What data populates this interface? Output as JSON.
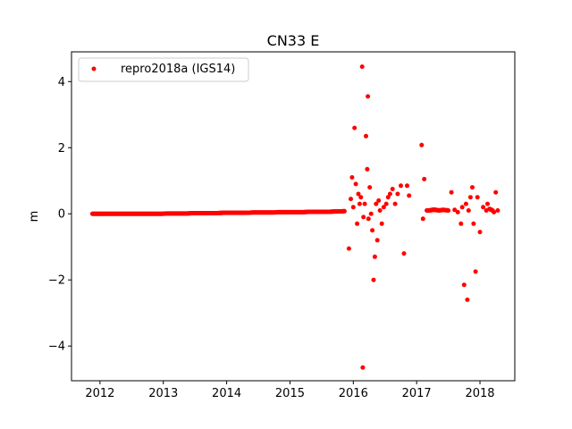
{
  "chart_data": {
    "type": "scatter",
    "title": "CN33 E",
    "xlabel": "",
    "ylabel": "m",
    "xlim": [
      2011.55,
      2018.55
    ],
    "ylim": [
      -5.05,
      4.9
    ],
    "xticks": [
      2012,
      2013,
      2014,
      2015,
      2016,
      2017,
      2018
    ],
    "xtick_labels": [
      "2012",
      "2013",
      "2014",
      "2015",
      "2016",
      "2017",
      "2018"
    ],
    "yticks": [
      -4,
      -2,
      0,
      2,
      4
    ],
    "ytick_labels": [
      "−4",
      "−2",
      "0",
      "2",
      "4"
    ],
    "grid": false,
    "legend_position": "top-left",
    "series": [
      {
        "name": "repro2018a (IGS14)",
        "color": "#ff0000",
        "marker": "dot",
        "x": [
          2011.88,
          2011.95,
          2012.02,
          2012.1,
          2012.18,
          2012.26,
          2012.34,
          2012.42,
          2012.5,
          2012.58,
          2012.66,
          2012.74,
          2012.82,
          2012.9,
          2012.98,
          2013.06,
          2013.14,
          2013.22,
          2013.3,
          2013.38,
          2013.46,
          2013.54,
          2013.62,
          2013.7,
          2013.78,
          2013.86,
          2013.94,
          2014.02,
          2014.1,
          2014.18,
          2014.26,
          2014.34,
          2014.42,
          2014.5,
          2014.58,
          2014.66,
          2014.74,
          2014.82,
          2014.9,
          2014.98,
          2015.06,
          2015.14,
          2015.22,
          2015.3,
          2015.38,
          2015.46,
          2015.54,
          2015.62,
          2015.7,
          2015.78,
          2015.86,
          2015.93,
          2015.96,
          2015.98,
          2016.0,
          2016.02,
          2016.04,
          2016.06,
          2016.08,
          2016.1,
          2016.12,
          2016.14,
          2016.15,
          2016.16,
          2016.18,
          2016.2,
          2016.22,
          2016.23,
          2016.24,
          2016.26,
          2016.28,
          2016.3,
          2016.32,
          2016.34,
          2016.36,
          2016.38,
          2016.4,
          2016.42,
          2016.45,
          2016.48,
          2016.52,
          2016.55,
          2016.58,
          2016.62,
          2016.66,
          2016.7,
          2016.75,
          2016.8,
          2016.85,
          2016.88,
          2017.08,
          2017.1,
          2017.12,
          2017.16,
          2017.2,
          2017.25,
          2017.3,
          2017.35,
          2017.42,
          2017.5,
          2017.55,
          2017.6,
          2017.65,
          2017.7,
          2017.72,
          2017.75,
          2017.78,
          2017.8,
          2017.82,
          2017.85,
          2017.88,
          2017.9,
          2017.93,
          2017.96,
          2018.0,
          2018.05,
          2018.1,
          2018.12,
          2018.15,
          2018.2,
          2018.22,
          2018.25,
          2018.28
        ],
        "y": [
          0.0,
          0.0,
          0.0,
          0.0,
          0.0,
          0.0,
          0.0,
          0.0,
          0.0,
          0.0,
          0.0,
          0.0,
          0.0,
          0.0,
          0.0,
          0.01,
          0.01,
          0.01,
          0.01,
          0.01,
          0.02,
          0.02,
          0.02,
          0.02,
          0.02,
          0.02,
          0.03,
          0.03,
          0.03,
          0.03,
          0.03,
          0.03,
          0.04,
          0.04,
          0.04,
          0.04,
          0.04,
          0.05,
          0.05,
          0.05,
          0.05,
          0.05,
          0.05,
          0.06,
          0.06,
          0.06,
          0.06,
          0.06,
          0.07,
          0.07,
          0.08,
          -1.05,
          0.45,
          1.1,
          0.2,
          2.6,
          0.9,
          -0.3,
          0.6,
          0.3,
          0.5,
          4.45,
          -4.65,
          -0.1,
          0.3,
          2.35,
          1.35,
          3.55,
          -0.15,
          0.8,
          0.0,
          -0.5,
          -2.0,
          -1.3,
          0.3,
          -0.8,
          0.4,
          0.1,
          -0.3,
          0.2,
          0.3,
          0.5,
          0.6,
          0.75,
          0.3,
          0.6,
          0.85,
          -1.2,
          0.85,
          0.55,
          2.08,
          -0.15,
          1.05,
          0.1,
          0.1,
          0.12,
          0.12,
          0.1,
          0.12,
          0.1,
          0.65,
          0.12,
          0.05,
          -0.3,
          0.2,
          -2.15,
          0.3,
          -2.6,
          0.1,
          0.5,
          0.8,
          -0.3,
          -1.75,
          0.5,
          -0.55,
          0.2,
          0.1,
          0.3,
          0.15,
          0.1,
          0.05,
          0.65,
          0.1
        ]
      }
    ]
  }
}
